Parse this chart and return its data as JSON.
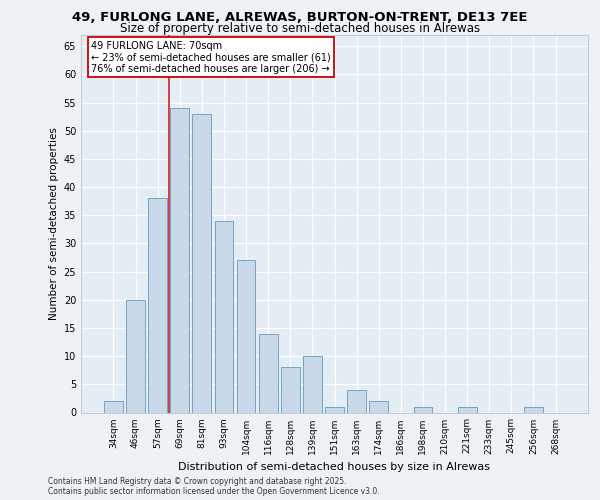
{
  "title_line1": "49, FURLONG LANE, ALREWAS, BURTON-ON-TRENT, DE13 7EE",
  "title_line2": "Size of property relative to semi-detached houses in Alrewas",
  "xlabel": "Distribution of semi-detached houses by size in Alrewas",
  "ylabel": "Number of semi-detached properties",
  "categories": [
    "34sqm",
    "46sqm",
    "57sqm",
    "69sqm",
    "81sqm",
    "93sqm",
    "104sqm",
    "116sqm",
    "128sqm",
    "139sqm",
    "151sqm",
    "163sqm",
    "174sqm",
    "186sqm",
    "198sqm",
    "210sqm",
    "221sqm",
    "233sqm",
    "245sqm",
    "256sqm",
    "268sqm"
  ],
  "values": [
    2,
    20,
    38,
    54,
    53,
    34,
    27,
    14,
    8,
    10,
    1,
    4,
    2,
    0,
    1,
    0,
    1,
    0,
    0,
    1,
    0
  ],
  "bar_color": "#c9d9ea",
  "bar_edge_color": "#6699bb",
  "red_line_x": 3,
  "annotation_text": "49 FURLONG LANE: 70sqm\n← 23% of semi-detached houses are smaller (61)\n76% of semi-detached houses are larger (206) →",
  "annotation_box_color": "#ffffff",
  "annotation_box_edge": "#cc0000",
  "ylim": [
    0,
    67
  ],
  "yticks": [
    0,
    5,
    10,
    15,
    20,
    25,
    30,
    35,
    40,
    45,
    50,
    55,
    60,
    65
  ],
  "background_color": "#eef2f7",
  "plot_bg_color": "#e4ecf4",
  "grid_color": "#ffffff",
  "footer": "Contains HM Land Registry data © Crown copyright and database right 2025.\nContains public sector information licensed under the Open Government Licence v3.0.",
  "red_line_color": "#cc2222",
  "title_fontsize": 9.5,
  "subtitle_fontsize": 8.5,
  "ylabel_fontsize": 7.5,
  "xlabel_fontsize": 8.0,
  "tick_fontsize": 7.0,
  "xtick_fontsize": 6.5,
  "annotation_fontsize": 7.0,
  "footer_fontsize": 5.5
}
